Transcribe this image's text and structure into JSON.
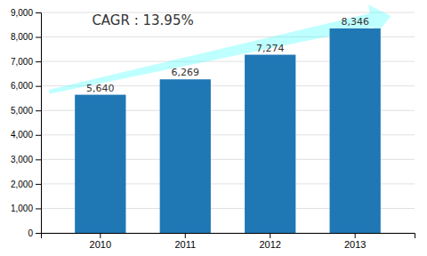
{
  "chart_data": {
    "type": "bar",
    "categories": [
      "2010",
      "2011",
      "2012",
      "2013"
    ],
    "values": [
      5640,
      6269,
      7274,
      8346
    ],
    "value_labels": [
      "5,640",
      "6,269",
      "7,274",
      "8,346"
    ],
    "data_labels": true,
    "annotations": [
      "CAGR : 13.95%"
    ],
    "ylim": [
      0,
      9000
    ],
    "yticks": [
      0,
      {
        "value": 1000,
        "label": "1,000"
      },
      {
        "value": 2000,
        "label": "2,000"
      },
      {
        "value": 3000,
        "label": "3,000"
      },
      {
        "value": 4000,
        "label": "4,000"
      },
      {
        "value": 5000,
        "label": "5,000"
      },
      {
        "value": 6000,
        "label": "6,000"
      },
      {
        "value": 7000,
        "label": "7,000"
      },
      {
        "value": 8000,
        "label": "8,000"
      },
      {
        "value": 9000,
        "label": "9,000"
      }
    ],
    "grid": true
  }
}
